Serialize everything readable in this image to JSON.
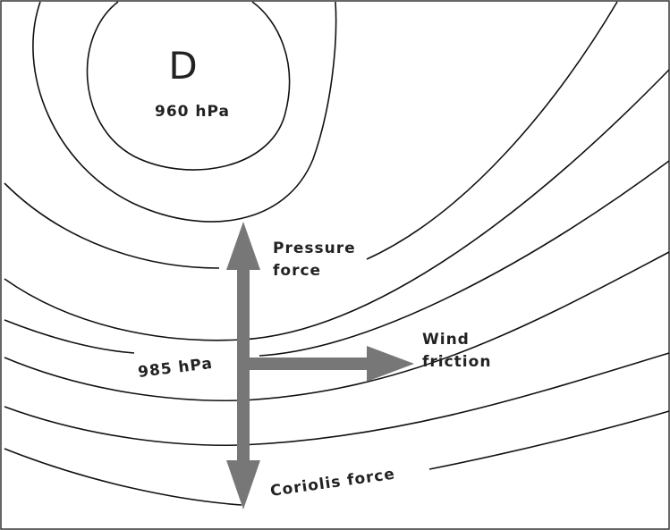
{
  "low": {
    "symbol": "D",
    "pressure": "960 hPa"
  },
  "isobar_label": "985 hPa",
  "forces": [
    {
      "lines": [
        "Pressure",
        "force"
      ]
    },
    {
      "lines": [
        "Wind",
        "friction"
      ]
    },
    {
      "lines": [
        "Coriolis force"
      ]
    }
  ]
}
